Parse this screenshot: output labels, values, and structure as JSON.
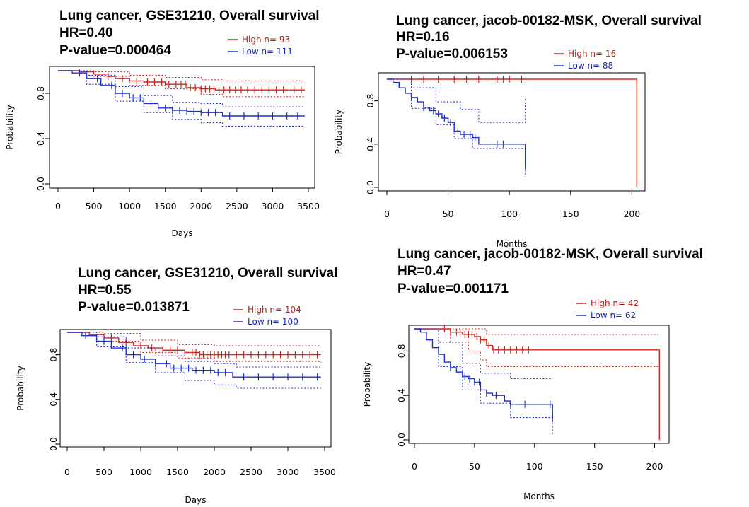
{
  "colors": {
    "high": "#d2261f",
    "low": "#1f2fd0",
    "axis": "#000000"
  },
  "chart_data": [
    {
      "type": "line",
      "title": "Lung cancer, GSE31210, Overall survival",
      "hr_text": "HR=0.40",
      "pvalue_text": "P-value=0.000464",
      "xlabel": "Days",
      "ylabel": "Probability",
      "xlim": [
        0,
        3500
      ],
      "ylim": [
        0,
        1
      ],
      "x_ticks": [
        "0",
        "500",
        "1000",
        "1500",
        "2000",
        "2500",
        "3000",
        "3500"
      ],
      "y_ticks": [
        "0.0",
        "0.4",
        "0.8"
      ],
      "legend": {
        "position": "top-right",
        "entries": [
          "High  n= 93",
          "Low   n= 111"
        ]
      },
      "series": [
        {
          "name": "High",
          "points": [
            [
              0,
              1.0
            ],
            [
              300,
              0.99
            ],
            [
              500,
              0.97
            ],
            [
              700,
              0.95
            ],
            [
              800,
              0.93
            ],
            [
              1000,
              0.91
            ],
            [
              1200,
              0.9
            ],
            [
              1500,
              0.88
            ],
            [
              1800,
              0.85
            ],
            [
              2000,
              0.84
            ],
            [
              2200,
              0.83
            ],
            [
              3450,
              0.83
            ]
          ],
          "lower": [
            [
              0,
              1.0
            ],
            [
              500,
              0.95
            ],
            [
              1000,
              0.87
            ],
            [
              1500,
              0.84
            ],
            [
              2000,
              0.79
            ],
            [
              2300,
              0.77
            ],
            [
              3450,
              0.77
            ]
          ],
          "upper": [
            [
              0,
              1.0
            ],
            [
              500,
              0.99
            ],
            [
              1000,
              0.96
            ],
            [
              1500,
              0.94
            ],
            [
              2000,
              0.92
            ],
            [
              2300,
              0.91
            ],
            [
              3450,
              0.91
            ]
          ],
          "censor": [
            700,
            900,
            1100,
            1250,
            1350,
            1450,
            1550,
            1650,
            1720,
            1780,
            1850,
            1920,
            2000,
            2060,
            2120,
            2180,
            2250,
            2320,
            2400,
            2480,
            2560,
            2650,
            2750,
            2850,
            2950,
            3050,
            3150,
            3300,
            3400
          ]
        },
        {
          "name": "Low",
          "points": [
            [
              0,
              1.0
            ],
            [
              200,
              0.98
            ],
            [
              400,
              0.93
            ],
            [
              600,
              0.87
            ],
            [
              800,
              0.8
            ],
            [
              1000,
              0.76
            ],
            [
              1200,
              0.71
            ],
            [
              1400,
              0.67
            ],
            [
              1600,
              0.65
            ],
            [
              1800,
              0.64
            ],
            [
              2000,
              0.63
            ],
            [
              2300,
              0.6
            ],
            [
              3450,
              0.6
            ]
          ],
          "lower": [
            [
              0,
              1.0
            ],
            [
              400,
              0.88
            ],
            [
              800,
              0.73
            ],
            [
              1200,
              0.63
            ],
            [
              1600,
              0.57
            ],
            [
              2000,
              0.54
            ],
            [
              2300,
              0.51
            ],
            [
              3450,
              0.51
            ]
          ],
          "upper": [
            [
              0,
              1.0
            ],
            [
              400,
              0.96
            ],
            [
              800,
              0.86
            ],
            [
              1200,
              0.78
            ],
            [
              1600,
              0.72
            ],
            [
              2000,
              0.71
            ],
            [
              2300,
              0.68
            ],
            [
              3450,
              0.68
            ]
          ],
          "censor": [
            300,
            550,
            750,
            900,
            1050,
            1150,
            1300,
            1400,
            1500,
            1600,
            1700,
            1800,
            1900,
            2000,
            2100,
            2200,
            2400,
            2600,
            2800,
            3000,
            3200,
            3350
          ]
        }
      ]
    },
    {
      "type": "line",
      "title": "Lung cancer, jacob-00182-MSK, Overall survival",
      "hr_text": "HR=0.16",
      "pvalue_text": "P-value=0.006153",
      "xlabel": "Months",
      "ylabel": "Probability",
      "xlim": [
        0,
        205
      ],
      "ylim": [
        0,
        1
      ],
      "x_ticks": [
        "0",
        "50",
        "100",
        "150",
        "200"
      ],
      "y_ticks": [
        "0.0",
        "0.4",
        "0.8"
      ],
      "legend": {
        "position": "top-right",
        "entries": [
          "High  n= 16",
          "Low   n= 88"
        ]
      },
      "series": [
        {
          "name": "High",
          "points": [
            [
              0,
              1.0
            ],
            [
              204,
              1.0
            ],
            [
              204,
              0.0
            ]
          ],
          "lower": [],
          "upper": [],
          "censor": [
            20,
            30,
            42,
            55,
            65,
            75,
            90,
            95,
            100,
            110
          ]
        },
        {
          "name": "Low",
          "points": [
            [
              0,
              1.0
            ],
            [
              5,
              0.97
            ],
            [
              10,
              0.92
            ],
            [
              15,
              0.87
            ],
            [
              20,
              0.83
            ],
            [
              25,
              0.79
            ],
            [
              30,
              0.74
            ],
            [
              35,
              0.71
            ],
            [
              40,
              0.68
            ],
            [
              45,
              0.64
            ],
            [
              50,
              0.6
            ],
            [
              55,
              0.52
            ],
            [
              60,
              0.49
            ],
            [
              70,
              0.46
            ],
            [
              75,
              0.4
            ],
            [
              110,
              0.4
            ],
            [
              113,
              0.2
            ]
          ],
          "lower": [
            [
              0,
              1.0
            ],
            [
              20,
              0.73
            ],
            [
              40,
              0.58
            ],
            [
              55,
              0.45
            ],
            [
              70,
              0.36
            ],
            [
              113,
              0.1
            ]
          ],
          "upper": [
            [
              0,
              1.0
            ],
            [
              20,
              0.92
            ],
            [
              40,
              0.79
            ],
            [
              60,
              0.72
            ],
            [
              75,
              0.6
            ],
            [
              113,
              0.82
            ]
          ],
          "censor": [
            20,
            30,
            38,
            42,
            47,
            52,
            58,
            63,
            68,
            72,
            90,
            95,
            113
          ]
        }
      ]
    },
    {
      "type": "line",
      "title": "Lung cancer, GSE31210, Overall survival",
      "hr_text": "HR=0.55",
      "pvalue_text": "P-value=0.013871",
      "xlabel": "Days",
      "ylabel": "Probability",
      "xlim": [
        0,
        3500
      ],
      "ylim": [
        0,
        1
      ],
      "x_ticks": [
        "0",
        "500",
        "1000",
        "1500",
        "2000",
        "2500",
        "3000",
        "3500"
      ],
      "y_ticks": [
        "0.0",
        "0.4",
        "0.8"
      ],
      "legend": {
        "position": "top-right",
        "entries": [
          "High  n= 104",
          "Low   n= 100"
        ]
      },
      "series": [
        {
          "name": "High",
          "points": [
            [
              0,
              1.0
            ],
            [
              300,
              0.98
            ],
            [
              500,
              0.95
            ],
            [
              700,
              0.91
            ],
            [
              900,
              0.88
            ],
            [
              1100,
              0.86
            ],
            [
              1300,
              0.84
            ],
            [
              1600,
              0.82
            ],
            [
              1800,
              0.8
            ],
            [
              3450,
              0.8
            ]
          ],
          "lower": [
            [
              0,
              1.0
            ],
            [
              500,
              0.92
            ],
            [
              1000,
              0.82
            ],
            [
              1500,
              0.77
            ],
            [
              2000,
              0.74
            ],
            [
              3450,
              0.73
            ]
          ],
          "upper": [
            [
              0,
              1.0
            ],
            [
              500,
              0.99
            ],
            [
              1000,
              0.93
            ],
            [
              1500,
              0.89
            ],
            [
              2000,
              0.88
            ],
            [
              3450,
              0.88
            ]
          ],
          "censor": [
            600,
            800,
            1000,
            1150,
            1300,
            1400,
            1500,
            1600,
            1700,
            1750,
            1800,
            1850,
            1900,
            1950,
            2000,
            2050,
            2100,
            2150,
            2200,
            2300,
            2400,
            2500,
            2600,
            2700,
            2800,
            2900,
            3000,
            3100,
            3200,
            3300,
            3400
          ]
        },
        {
          "name": "Low",
          "points": [
            [
              0,
              1.0
            ],
            [
              200,
              0.97
            ],
            [
              400,
              0.92
            ],
            [
              600,
              0.86
            ],
            [
              800,
              0.8
            ],
            [
              1000,
              0.76
            ],
            [
              1200,
              0.72
            ],
            [
              1400,
              0.68
            ],
            [
              1700,
              0.66
            ],
            [
              2000,
              0.64
            ],
            [
              2250,
              0.6
            ],
            [
              3450,
              0.6
            ]
          ],
          "lower": [
            [
              0,
              1.0
            ],
            [
              400,
              0.87
            ],
            [
              800,
              0.73
            ],
            [
              1200,
              0.64
            ],
            [
              1600,
              0.57
            ],
            [
              2000,
              0.53
            ],
            [
              2300,
              0.5
            ],
            [
              3450,
              0.5
            ]
          ],
          "upper": [
            [
              0,
              1.0
            ],
            [
              400,
              0.96
            ],
            [
              800,
              0.86
            ],
            [
              1200,
              0.79
            ],
            [
              1600,
              0.74
            ],
            [
              2000,
              0.72
            ],
            [
              2300,
              0.69
            ],
            [
              3450,
              0.69
            ]
          ],
          "censor": [
            250,
            500,
            750,
            900,
            1050,
            1200,
            1350,
            1450,
            1550,
            1650,
            1750,
            1850,
            1950,
            2050,
            2150,
            2400,
            2600,
            2800,
            3000,
            3200,
            3400
          ]
        }
      ]
    },
    {
      "type": "line",
      "title": "Lung cancer, jacob-00182-MSK, Overall survival",
      "hr_text": "HR=0.47",
      "pvalue_text": "P-value=0.001171",
      "xlabel": "Months",
      "ylabel": "Probability",
      "xlim": [
        0,
        205
      ],
      "ylim": [
        0,
        1
      ],
      "x_ticks": [
        "0",
        "50",
        "100",
        "150",
        "200"
      ],
      "y_ticks": [
        "0.0",
        "0.4",
        "0.8"
      ],
      "legend": {
        "position": "top-right",
        "entries": [
          "High  n= 42",
          "Low   n= 62"
        ]
      },
      "series": [
        {
          "name": "High",
          "points": [
            [
              0,
              1.0
            ],
            [
              20,
              1.0
            ],
            [
              30,
              0.97
            ],
            [
              40,
              0.95
            ],
            [
              50,
              0.93
            ],
            [
              55,
              0.9
            ],
            [
              60,
              0.85
            ],
            [
              65,
              0.81
            ],
            [
              204,
              0.81
            ],
            [
              204,
              0.0
            ]
          ],
          "lower": [
            [
              0,
              1.0
            ],
            [
              30,
              0.88
            ],
            [
              45,
              0.8
            ],
            [
              55,
              0.72
            ],
            [
              60,
              0.66
            ],
            [
              204,
              0.66
            ]
          ],
          "upper": [
            [
              0,
              1.0
            ],
            [
              55,
              1.0
            ],
            [
              60,
              0.95
            ],
            [
              204,
              0.95
            ]
          ],
          "censor": [
            25,
            30,
            35,
            38,
            42,
            45,
            48,
            52,
            55,
            58,
            62,
            66,
            70,
            75,
            80,
            85,
            90,
            95
          ]
        },
        {
          "name": "Low",
          "points": [
            [
              0,
              1.0
            ],
            [
              5,
              0.97
            ],
            [
              10,
              0.9
            ],
            [
              15,
              0.83
            ],
            [
              20,
              0.77
            ],
            [
              25,
              0.7
            ],
            [
              30,
              0.65
            ],
            [
              35,
              0.61
            ],
            [
              40,
              0.57
            ],
            [
              45,
              0.55
            ],
            [
              50,
              0.52
            ],
            [
              55,
              0.45
            ],
            [
              60,
              0.42
            ],
            [
              65,
              0.4
            ],
            [
              75,
              0.35
            ],
            [
              80,
              0.32
            ],
            [
              113,
              0.32
            ],
            [
              115,
              0.16
            ]
          ],
          "lower": [
            [
              0,
              1.0
            ],
            [
              20,
              0.66
            ],
            [
              40,
              0.45
            ],
            [
              55,
              0.33
            ],
            [
              80,
              0.2
            ],
            [
              115,
              0.05
            ]
          ],
          "upper": [
            [
              0,
              1.0
            ],
            [
              20,
              0.88
            ],
            [
              40,
              0.69
            ],
            [
              55,
              0.6
            ],
            [
              80,
              0.55
            ],
            [
              115,
              0.55
            ]
          ],
          "censor": [
            30,
            38,
            42,
            46,
            50,
            54,
            60,
            68,
            80,
            92,
            113
          ]
        }
      ]
    }
  ]
}
